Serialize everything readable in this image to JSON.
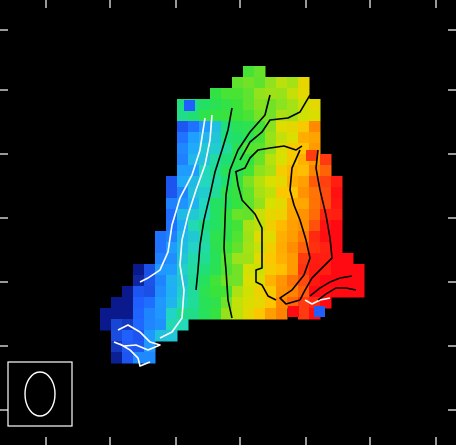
{
  "figure": {
    "background": "#000000",
    "frame_color": "#ffffff",
    "colormap_stops": [
      "#0a1a8c",
      "#1f5fff",
      "#1fa6ff",
      "#22d8c0",
      "#1ee06a",
      "#38e33a",
      "#8ae21f",
      "#d8e000",
      "#ffc400",
      "#ff8a00",
      "#ff3b10",
      "#ff0a12"
    ],
    "contour_colors": [
      "#ffffff",
      "#000000"
    ]
  }
}
